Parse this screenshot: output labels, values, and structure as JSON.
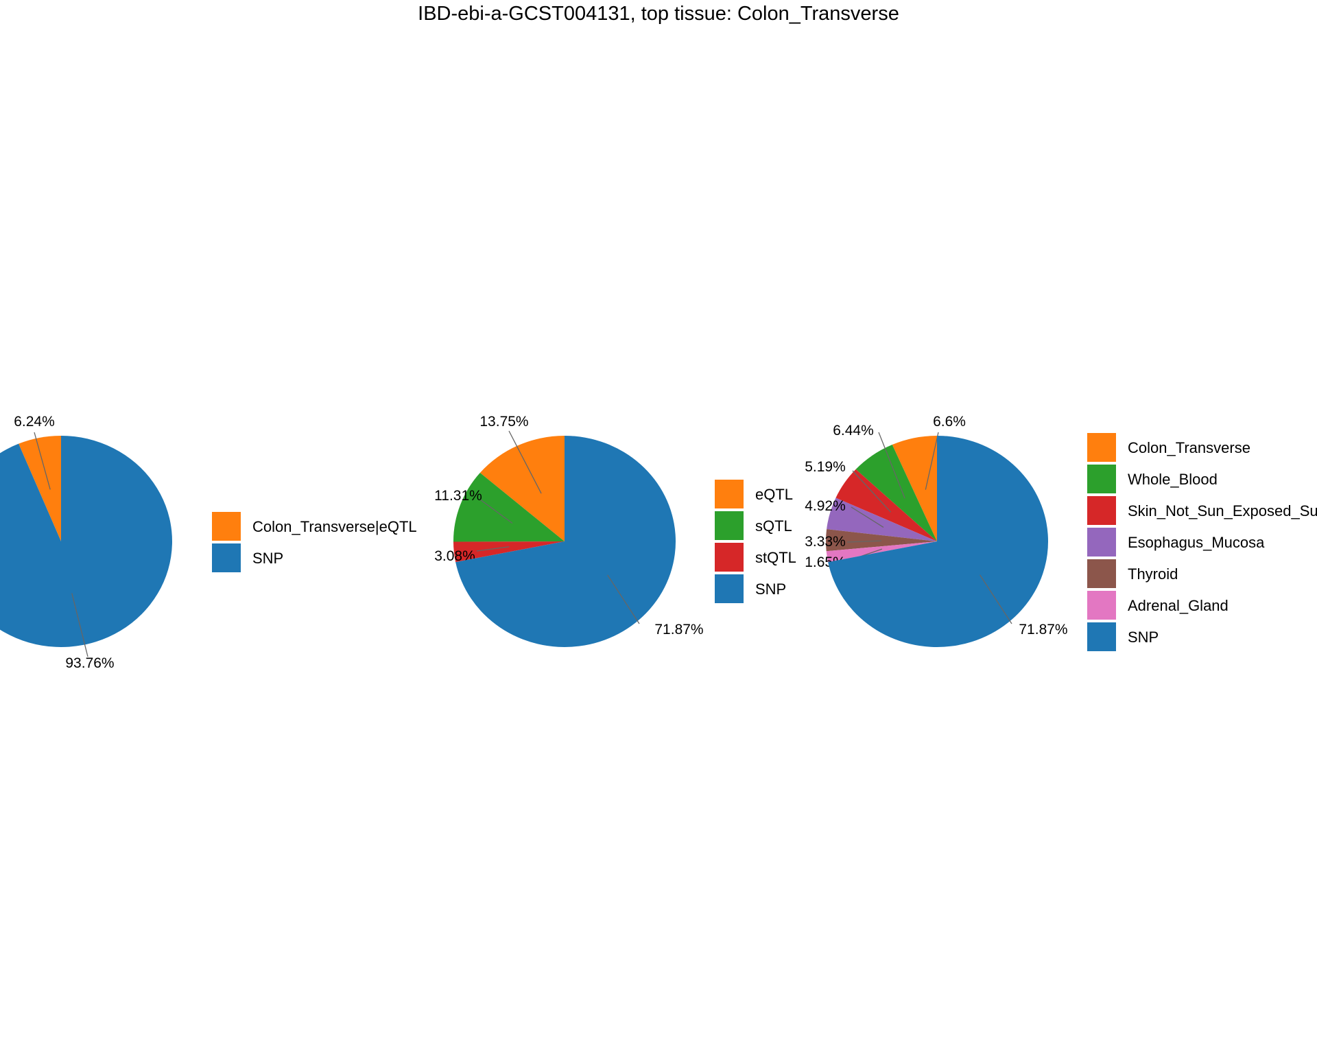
{
  "title": "IBD-ebi-a-GCST004131, top tissue: Colon_Transverse",
  "colors": {
    "orange": "#ff7f0e",
    "green": "#2ca02c",
    "red": "#d62728",
    "purple": "#9467bd",
    "brown": "#8c564b",
    "pink": "#e377c2",
    "blue": "#1f77b4"
  },
  "chart_data": [
    {
      "type": "pie",
      "slices": [
        {
          "name": "Colon_Transverse|eQTL",
          "value": 6.24,
          "label": "6.24%",
          "color": "#ff7f0e"
        },
        {
          "name": "SNP",
          "value": 93.76,
          "label": "93.76%",
          "color": "#1f77b4"
        }
      ]
    },
    {
      "type": "pie",
      "slices": [
        {
          "name": "eQTL",
          "value": 13.75,
          "label": "13.75%",
          "color": "#ff7f0e"
        },
        {
          "name": "sQTL",
          "value": 11.31,
          "label": "11.31%",
          "color": "#2ca02c"
        },
        {
          "name": "stQTL",
          "value": 3.08,
          "label": "3.08%",
          "color": "#d62728"
        },
        {
          "name": "SNP",
          "value": 71.87,
          "label": "71.87%",
          "color": "#1f77b4"
        }
      ]
    },
    {
      "type": "pie",
      "slices": [
        {
          "name": "Colon_Transverse",
          "value": 6.6,
          "label": "6.6%",
          "color": "#ff7f0e"
        },
        {
          "name": "Whole_Blood",
          "value": 6.44,
          "label": "6.44%",
          "color": "#2ca02c"
        },
        {
          "name": "Skin_Not_Sun_Exposed_Suprapubic",
          "value": 5.19,
          "label": "5.19%",
          "color": "#d62728"
        },
        {
          "name": "Esophagus_Mucosa",
          "value": 4.92,
          "label": "4.92%",
          "color": "#9467bd"
        },
        {
          "name": "Thyroid",
          "value": 3.33,
          "label": "3.33%",
          "color": "#8c564b"
        },
        {
          "name": "Adrenal_Gland",
          "value": 1.65,
          "label": "1.65%",
          "color": "#e377c2"
        },
        {
          "name": "SNP",
          "value": 71.87,
          "label": "71.87%",
          "color": "#1f77b4"
        }
      ]
    }
  ]
}
